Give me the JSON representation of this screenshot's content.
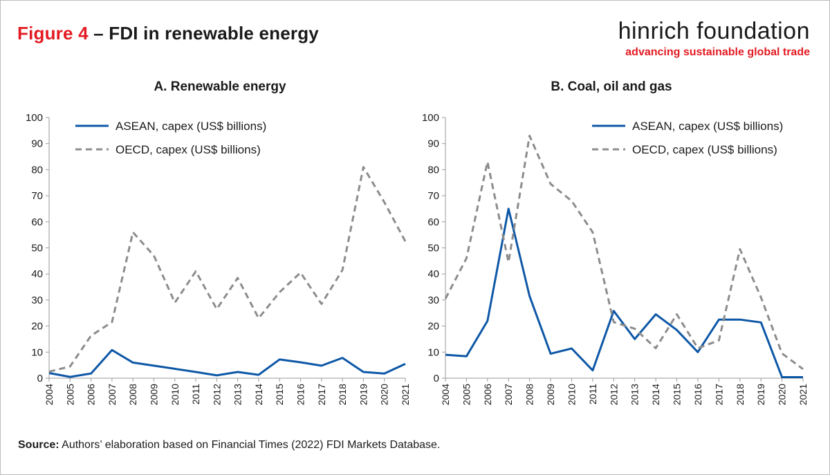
{
  "header": {
    "figure_label": "Figure 4",
    "title_rest": " – FDI in renewable energy",
    "brand_name": "hinrich foundation",
    "brand_tagline": "advancing sustainable global trade"
  },
  "source": {
    "label": "Source:",
    "text": " Authors’ elaboration based on Financial Times (2022) FDI Markets Database."
  },
  "colors": {
    "asean": "#0d57a6",
    "oecd": "#8c8c8c",
    "accent": "#e31b23"
  },
  "chart_data": [
    {
      "type": "line",
      "title": "A. Renewable energy",
      "categories": [
        "2004",
        "2005",
        "2006",
        "2007",
        "2008",
        "2009",
        "2010",
        "2011",
        "2012",
        "2013",
        "2014",
        "2015",
        "2016",
        "2017",
        "2018",
        "2019",
        "2020",
        "2021"
      ],
      "ylim": [
        0,
        100
      ],
      "yticks": [
        "0",
        "10",
        "20",
        "30",
        "40",
        "50",
        "60",
        "70",
        "80",
        "90",
        "100"
      ],
      "legend_position": "top-left",
      "series": [
        {
          "name": "ASEAN, capex (US$ billions)",
          "style": "solid",
          "values": [
            2,
            0.5,
            1.8,
            10.8,
            6,
            4.8,
            3.6,
            2.4,
            1.1,
            2.4,
            1.3,
            7.2,
            6.1,
            4.8,
            7.8,
            2.4,
            1.8,
            5.5
          ]
        },
        {
          "name": "OECD, capex (US$ billions)",
          "style": "dashed",
          "values": [
            2.5,
            4.5,
            16.3,
            21.5,
            56,
            47,
            29,
            41,
            26.5,
            38.5,
            23,
            33,
            40.5,
            28.5,
            41.5,
            81,
            67.5,
            52.5
          ]
        }
      ]
    },
    {
      "type": "line",
      "title": "B. Coal, oil and gas",
      "categories": [
        "2004",
        "2005",
        "2006",
        "2007",
        "2008",
        "2009",
        "2010",
        "2011",
        "2012",
        "2013",
        "2014",
        "2015",
        "2016",
        "2017",
        "2018",
        "2019",
        "2020",
        "2021"
      ],
      "ylim": [
        0,
        100
      ],
      "yticks": [
        "0",
        "10",
        "20",
        "30",
        "40",
        "50",
        "60",
        "70",
        "80",
        "90",
        "100"
      ],
      "legend_position": "top-right",
      "series": [
        {
          "name": "ASEAN, capex (US$ billions)",
          "style": "solid",
          "values": [
            9,
            8.4,
            22,
            65,
            31.5,
            9.4,
            11.4,
            3,
            25.8,
            15,
            24.5,
            18.5,
            10,
            22.5,
            22.5,
            21.4,
            0.4,
            0.4
          ]
        },
        {
          "name": "OECD, capex (US$ billions)",
          "style": "dashed",
          "values": [
            30.5,
            46,
            83,
            44.5,
            93,
            74.5,
            68,
            56,
            21.5,
            19,
            11.5,
            24.5,
            11.5,
            14.5,
            49.5,
            31,
            9.5,
            3.5
          ]
        }
      ]
    }
  ]
}
